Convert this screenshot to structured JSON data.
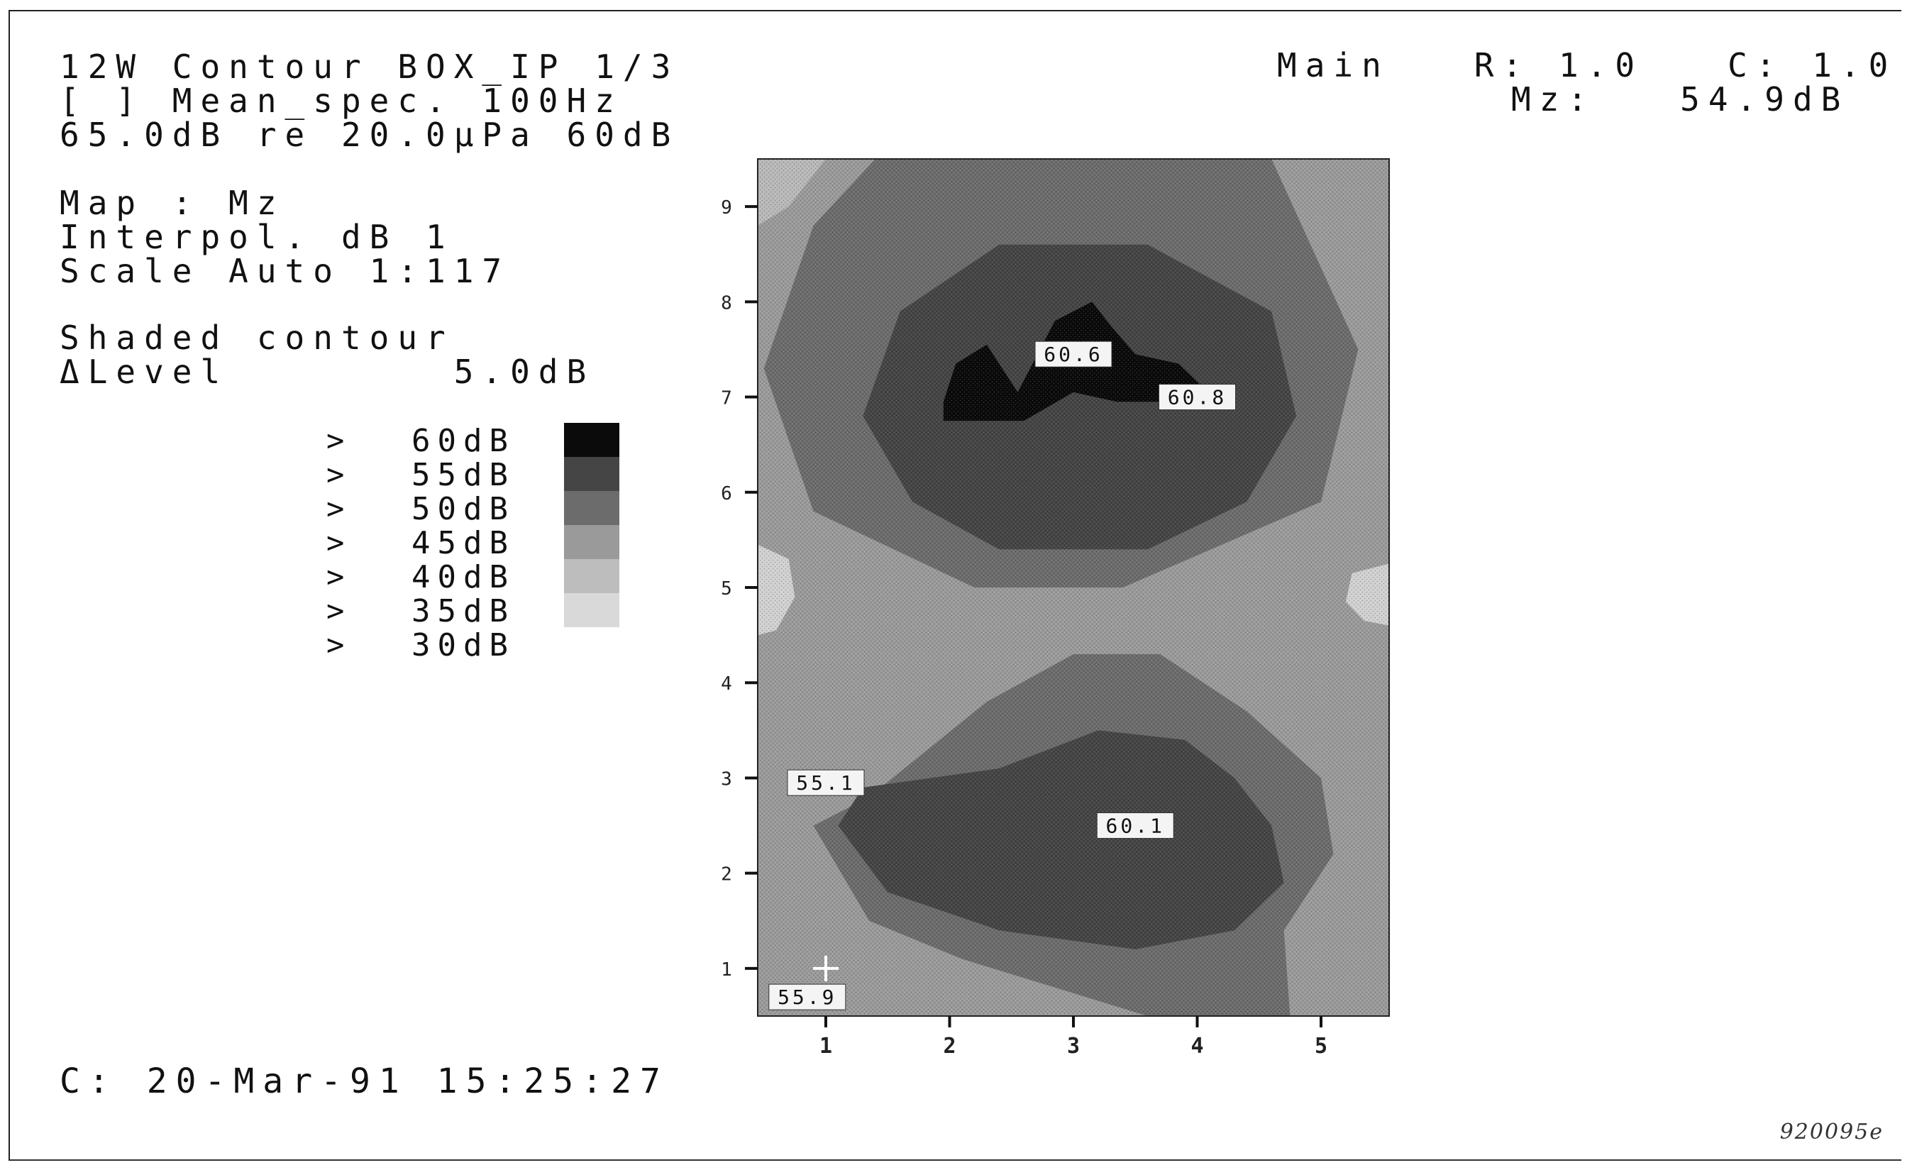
{
  "header": {
    "line1": "12W Contour BOX_IP 1/3",
    "line2": "[ ] Mean_spec. 100Hz",
    "line3": "65.0dB re 20.0µPa 60dB"
  },
  "map_info": {
    "line1": "Map : Mz",
    "line2": "Interpol. dB 1",
    "line3": "Scale Auto 1:117"
  },
  "shading": {
    "line1": "Shaded contour",
    "line2": "ΔLevel        5.0dB"
  },
  "legend": [
    {
      "symbol": ">",
      "level": "60dB",
      "color": "#0b0b0b"
    },
    {
      "symbol": ">",
      "level": "55dB",
      "color": "#454545"
    },
    {
      "symbol": ">",
      "level": "50dB",
      "color": "#6c6c6c"
    },
    {
      "symbol": ">",
      "level": "45dB",
      "color": "#9a9a9a"
    },
    {
      "symbol": ">",
      "level": "40dB",
      "color": "#bdbdbd"
    },
    {
      "symbol": ">",
      "level": "35dB",
      "color": "#d9d9d9"
    },
    {
      "symbol": ">",
      "level": "30dB",
      "color": "#ffffff"
    }
  ],
  "cursor": {
    "line1": "Main   R: 1.0   C: 1.0",
    "line2": "Mz:   54.9dB"
  },
  "footer": {
    "timestamp": "C: 20-Mar-91 15:25:27",
    "code": "920095e"
  },
  "chart_data": {
    "type": "heatmap",
    "xlim": [
      0.45,
      5.55
    ],
    "ylim": [
      0.5,
      9.5
    ],
    "x_ticks": [
      "1",
      "2",
      "3",
      "4",
      "5"
    ],
    "y_ticks": [
      "1",
      "2",
      "3",
      "4",
      "5",
      "6",
      "7",
      "8",
      "9"
    ],
    "background_color": "#9a9a9a",
    "regions": [
      {
        "level": "50dB",
        "color": "#6c6c6c",
        "points": [
          [
            1.4,
            9.5
          ],
          [
            4.6,
            9.5
          ],
          [
            5.3,
            7.5
          ],
          [
            5.0,
            5.9
          ],
          [
            3.4,
            5.0
          ],
          [
            2.2,
            5.0
          ],
          [
            0.9,
            5.8
          ],
          [
            0.5,
            7.3
          ],
          [
            0.9,
            8.8
          ]
        ]
      },
      {
        "level": "55dB",
        "color": "#454545",
        "points": [
          [
            2.4,
            8.6
          ],
          [
            3.6,
            8.6
          ],
          [
            4.6,
            7.9
          ],
          [
            4.8,
            6.8
          ],
          [
            4.4,
            5.9
          ],
          [
            3.6,
            5.4
          ],
          [
            2.4,
            5.4
          ],
          [
            1.7,
            5.9
          ],
          [
            1.3,
            6.8
          ],
          [
            1.6,
            7.9
          ]
        ]
      },
      {
        "level": "60dB",
        "color": "#0b0b0b",
        "points": [
          [
            2.55,
            7.05
          ],
          [
            2.85,
            7.8
          ],
          [
            3.15,
            8.0
          ],
          [
            3.3,
            7.75
          ],
          [
            3.5,
            7.45
          ],
          [
            3.85,
            7.35
          ],
          [
            4.05,
            7.1
          ],
          [
            3.75,
            6.95
          ],
          [
            3.35,
            6.95
          ],
          [
            3.0,
            7.05
          ],
          [
            2.6,
            6.75
          ],
          [
            1.95,
            6.75
          ],
          [
            1.95,
            6.95
          ],
          [
            2.05,
            7.35
          ],
          [
            2.3,
            7.55
          ]
        ]
      },
      {
        "level": "50dB",
        "color": "#6c6c6c",
        "points": [
          [
            1.35,
            2.8
          ],
          [
            2.3,
            3.8
          ],
          [
            3.0,
            4.3
          ],
          [
            3.7,
            4.3
          ],
          [
            4.4,
            3.7
          ],
          [
            5.0,
            3.0
          ],
          [
            5.1,
            2.2
          ],
          [
            4.7,
            1.4
          ],
          [
            4.75,
            0.5
          ],
          [
            3.6,
            0.5
          ],
          [
            2.1,
            1.1
          ],
          [
            1.35,
            1.5
          ],
          [
            0.9,
            2.5
          ]
        ]
      },
      {
        "level": "55dB",
        "color": "#454545",
        "points": [
          [
            1.3,
            2.9
          ],
          [
            2.4,
            3.1
          ],
          [
            3.2,
            3.5
          ],
          [
            3.9,
            3.4
          ],
          [
            4.3,
            3.0
          ],
          [
            4.6,
            2.5
          ],
          [
            4.7,
            1.9
          ],
          [
            4.3,
            1.4
          ],
          [
            3.5,
            1.2
          ],
          [
            2.4,
            1.4
          ],
          [
            1.5,
            1.8
          ],
          [
            1.1,
            2.5
          ]
        ]
      },
      {
        "level": "40dB",
        "color": "#d0d0d0",
        "points": [
          [
            0.45,
            5.45
          ],
          [
            0.7,
            5.3
          ],
          [
            0.75,
            4.9
          ],
          [
            0.6,
            4.55
          ],
          [
            0.45,
            4.5
          ]
        ]
      },
      {
        "level": "40dB",
        "color": "#d0d0d0",
        "points": [
          [
            5.55,
            5.25
          ],
          [
            5.25,
            5.15
          ],
          [
            5.2,
            4.85
          ],
          [
            5.35,
            4.65
          ],
          [
            5.55,
            4.6
          ]
        ]
      },
      {
        "level": "45dB",
        "color": "#b8b8b8",
        "points": [
          [
            0.45,
            9.5
          ],
          [
            1.0,
            9.5
          ],
          [
            0.7,
            9.0
          ],
          [
            0.45,
            8.8
          ]
        ]
      }
    ],
    "point_labels": [
      {
        "x": 3.0,
        "y": 7.45,
        "text": "60.6"
      },
      {
        "x": 4.0,
        "y": 7.0,
        "text": "60.8"
      },
      {
        "x": 1.0,
        "y": 2.95,
        "text": "55.1"
      },
      {
        "x": 3.5,
        "y": 2.5,
        "text": "60.1"
      },
      {
        "x": 0.85,
        "y": 0.7,
        "text": "55.9"
      }
    ],
    "cursor": {
      "x": 1.0,
      "y": 1.0
    }
  }
}
